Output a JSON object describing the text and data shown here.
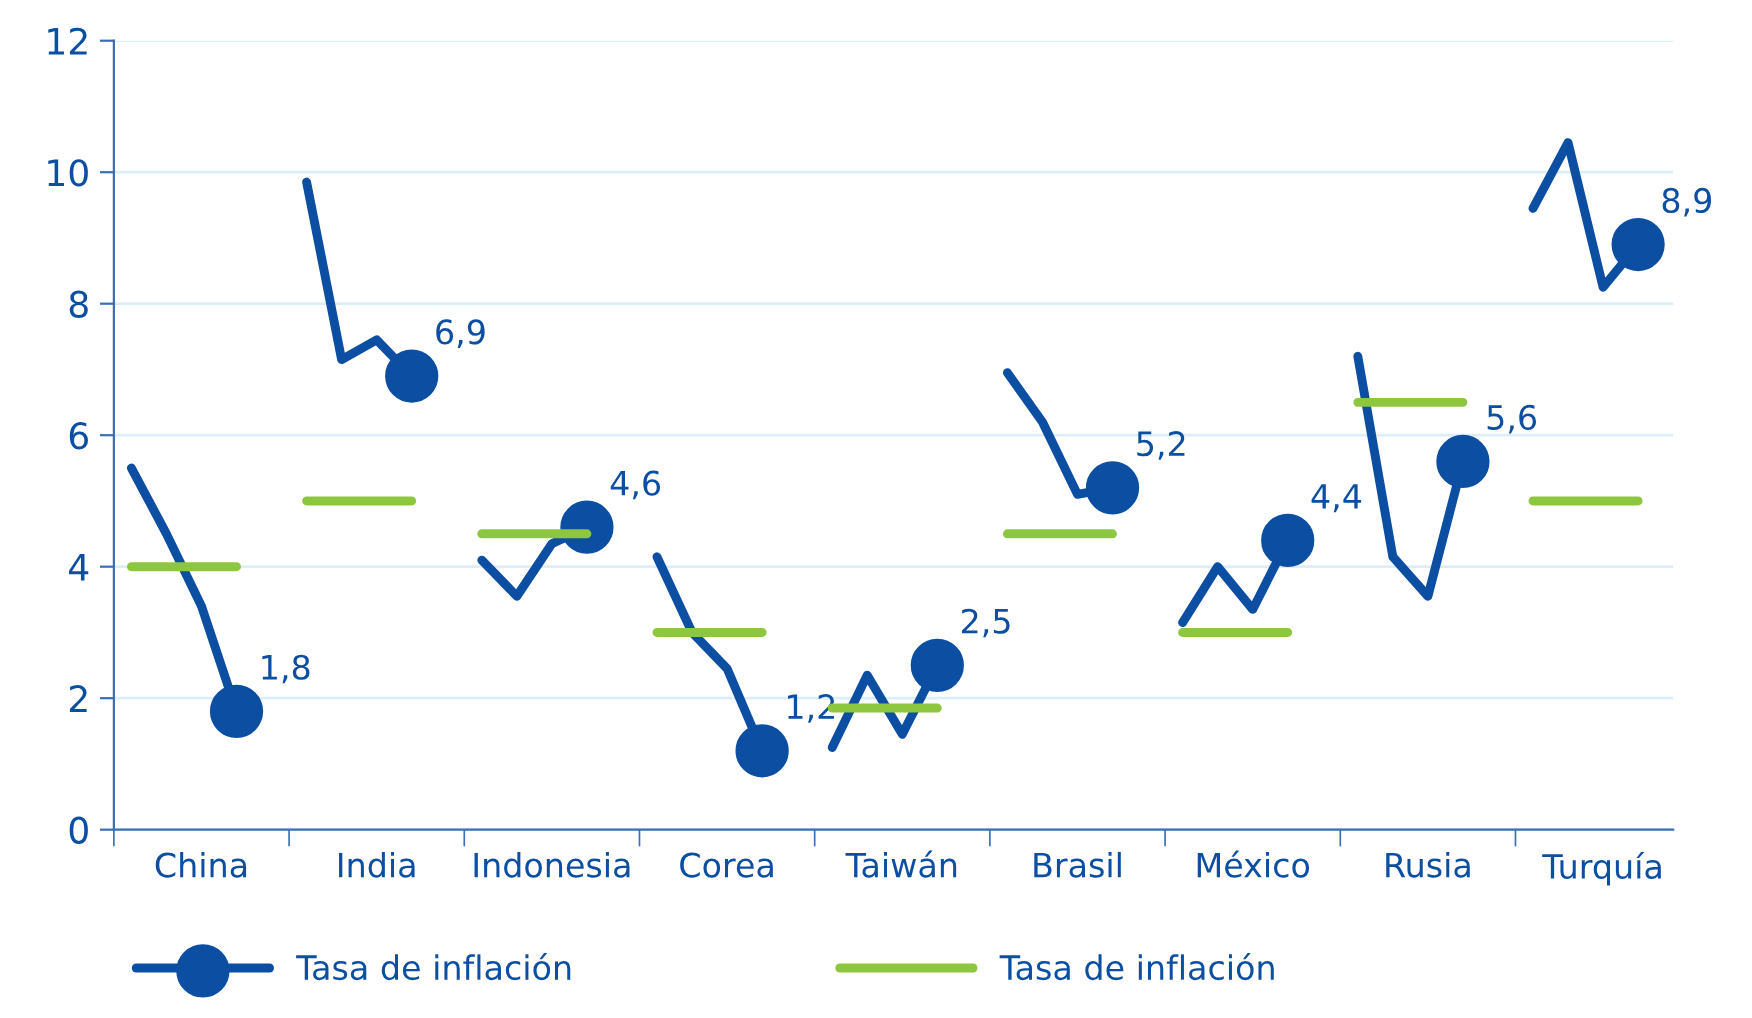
{
  "chart_data": {
    "type": "line",
    "categories": [
      null,
      null,
      "China",
      null,
      null,
      null,
      null,
      "India",
      null,
      null,
      null,
      null,
      "Indonesia",
      null,
      null,
      null,
      null,
      "Corea",
      null,
      null,
      null,
      null,
      "Taiwán",
      null,
      null,
      null,
      null,
      "Brasil",
      null,
      null,
      null,
      null,
      "México",
      null,
      null,
      null,
      null,
      "Rusia",
      null,
      null,
      null,
      null,
      "Turquía",
      null,
      null
    ],
    "ylim": [
      0,
      12
    ],
    "yticks": [
      0,
      2,
      4,
      6,
      8,
      10,
      12
    ],
    "grid": "y",
    "legend": "bottom",
    "series": [
      {
        "name": "Tasa de inflación",
        "color": "#0b4ea2",
        "line_style": "solid",
        "values": [
          5.5,
          4.5,
          3.4,
          1.8,
          null,
          9.85,
          7.15,
          7.45,
          6.9,
          null,
          4.1,
          3.55,
          4.35,
          4.6,
          null,
          4.15,
          3.0,
          2.45,
          1.2,
          null,
          1.25,
          2.35,
          1.45,
          2.5,
          null,
          6.95,
          6.2,
          5.1,
          5.2,
          null,
          3.15,
          4.0,
          3.35,
          4.4,
          null,
          7.2,
          4.15,
          3.55,
          5.6,
          null,
          9.45,
          10.45,
          8.25,
          8.9,
          null
        ]
      },
      {
        "type": "scatter",
        "color": "#0b4ea2",
        "marker": "circle",
        "values": [
          null,
          null,
          null,
          1.8,
          null,
          null,
          null,
          null,
          6.9,
          null,
          null,
          null,
          null,
          4.6,
          null,
          null,
          null,
          null,
          1.2,
          null,
          null,
          null,
          null,
          2.5,
          null,
          null,
          null,
          null,
          5.2,
          null,
          null,
          null,
          null,
          4.4,
          null,
          null,
          null,
          null,
          5.6,
          null,
          null,
          null,
          null,
          8.9,
          null
        ],
        "value_labels": [
          null,
          null,
          null,
          "1,8",
          null,
          null,
          null,
          null,
          "6,9",
          null,
          null,
          null,
          null,
          "4,6",
          null,
          null,
          null,
          null,
          "1,2",
          null,
          null,
          null,
          null,
          "2,5",
          null,
          null,
          null,
          null,
          "5,2",
          null,
          null,
          null,
          null,
          "4,4",
          null,
          null,
          null,
          null,
          "5,6",
          null,
          null,
          null,
          null,
          "8,9",
          null
        ]
      },
      {
        "name": "Tasa de inflación",
        "type": "line",
        "color": "#8dc63f",
        "line_style": "solid",
        "values": [
          4.0,
          4.0,
          4.0,
          4.0,
          null,
          5.0,
          5.0,
          5.0,
          5.0,
          null,
          4.5,
          4.5,
          4.5,
          4.5,
          null,
          3.0,
          3.0,
          3.0,
          3.0,
          null,
          1.85,
          1.85,
          1.85,
          1.85,
          null,
          4.5,
          4.5,
          4.5,
          4.5,
          null,
          3.0,
          3.0,
          3.0,
          3.0,
          null,
          6.5,
          6.5,
          6.5,
          6.5,
          null,
          5.0,
          5.0,
          5.0,
          5.0,
          null
        ]
      }
    ]
  }
}
